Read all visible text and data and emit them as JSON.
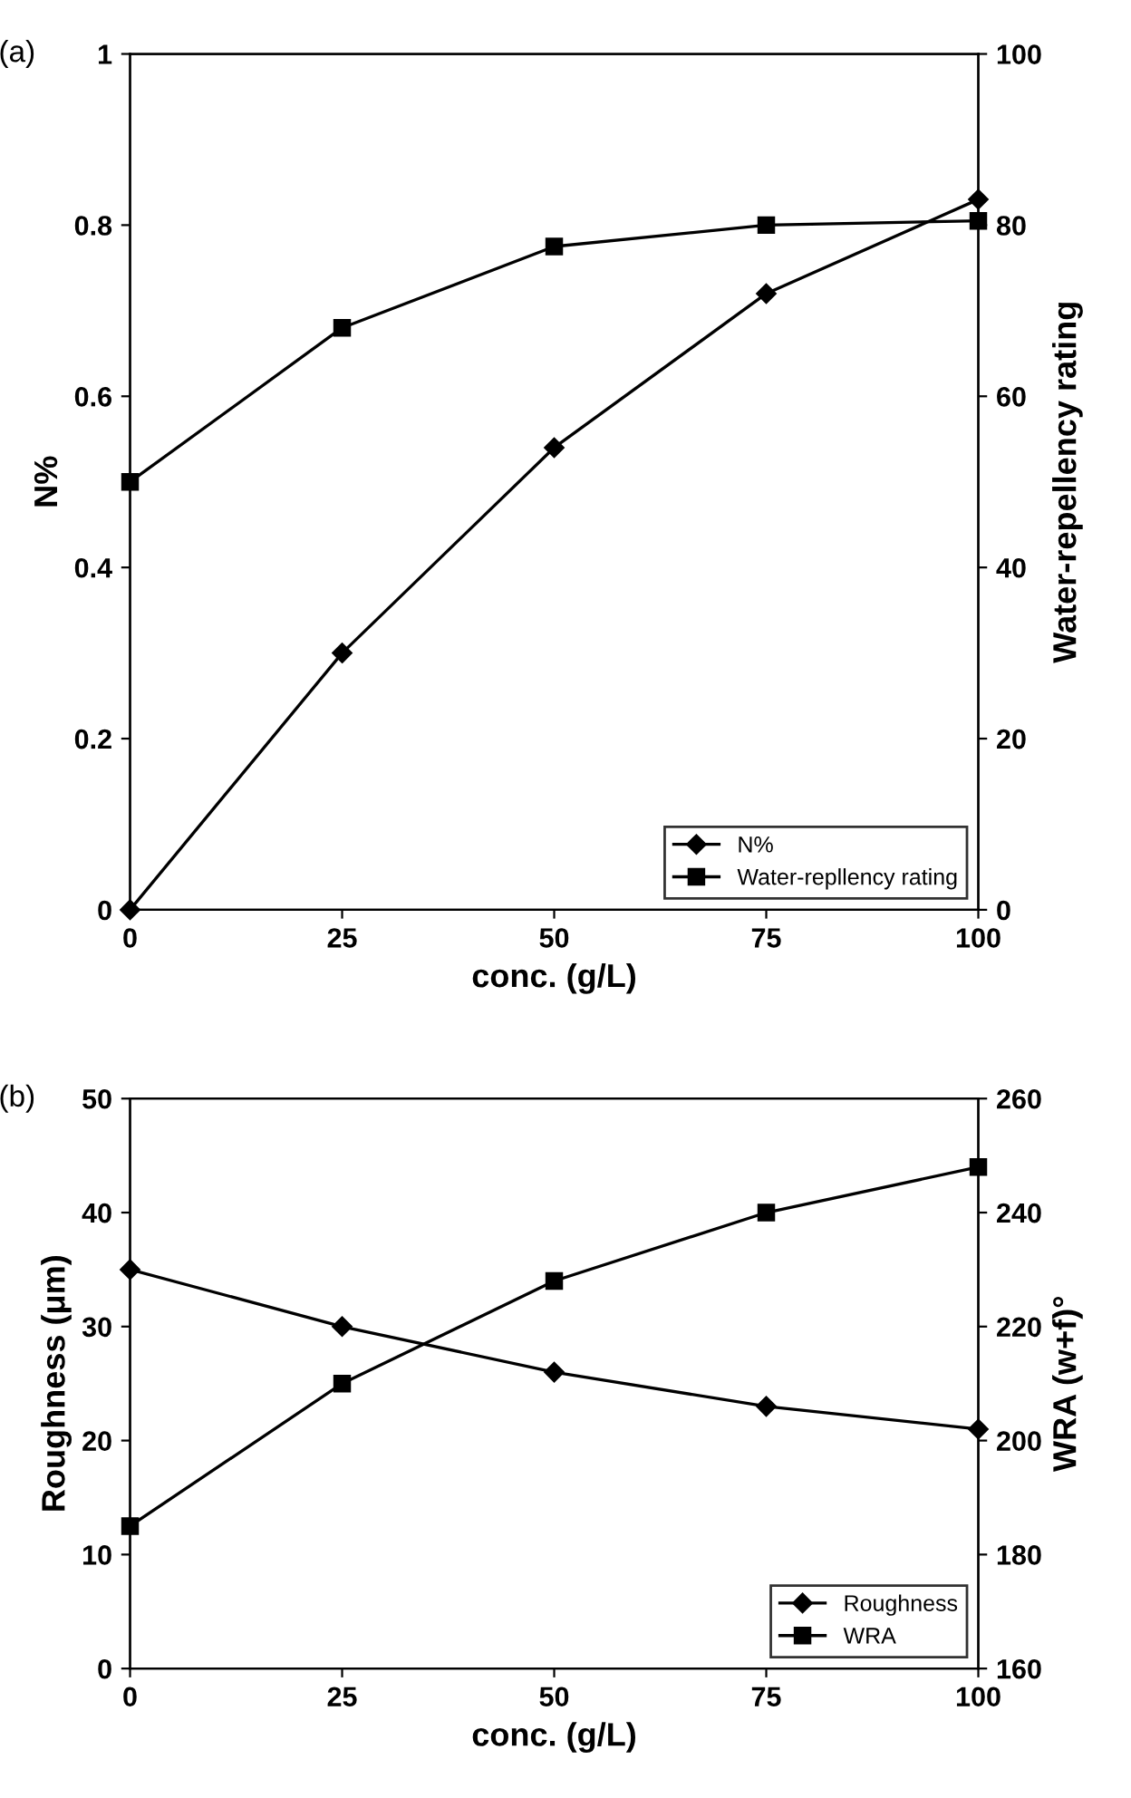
{
  "chart_data": [
    {
      "type": "line",
      "annotations": [
        "(a)"
      ],
      "xlabel": "conc. (g/L)",
      "ylabel": "N%",
      "y2label": "Water-repellency rating",
      "x": [
        0,
        25,
        50,
        75,
        100
      ],
      "xlim": [
        0,
        100
      ],
      "xticks": [
        0,
        25,
        50,
        75,
        100
      ],
      "ylim": [
        0,
        1
      ],
      "yticks": [
        0,
        0.2,
        0.4,
        0.6,
        0.8,
        1
      ],
      "y2lim": [
        0,
        100
      ],
      "y2ticks": [
        0,
        20,
        40,
        60,
        80,
        100
      ],
      "legend": "bottom right",
      "grid": false,
      "line_style": "solid",
      "series": [
        {
          "name": "N%",
          "color": "#000000",
          "marker": "diamond",
          "values": [
            0,
            0.3,
            0.54,
            0.72,
            0.83
          ]
        },
        {
          "name": "Water-repllency rating",
          "color": "#000000",
          "marker": "square",
          "axis": "y2",
          "values": [
            50,
            68,
            77.5,
            80,
            80.5
          ]
        }
      ]
    },
    {
      "type": "line",
      "annotations": [
        "(b)"
      ],
      "xlabel": "conc. (g/L)",
      "ylabel": "Roughness (μm)",
      "y2label": "WRA (w+f)°",
      "x": [
        0,
        25,
        50,
        75,
        100
      ],
      "xlim": [
        0,
        100
      ],
      "xticks": [
        0,
        25,
        50,
        75,
        100
      ],
      "ylim": [
        0,
        50
      ],
      "yticks": [
        0,
        10,
        20,
        30,
        40,
        50
      ],
      "y2lim": [
        160,
        260
      ],
      "y2ticks": [
        160,
        180,
        200,
        220,
        240,
        260
      ],
      "legend": "bottom right",
      "grid": false,
      "line_style": "solid",
      "series": [
        {
          "name": "Roughness",
          "color": "#000000",
          "marker": "diamond",
          "values": [
            35,
            30,
            26,
            23,
            21
          ]
        },
        {
          "name": "WRA",
          "color": "#000000",
          "marker": "square",
          "axis": "y2",
          "values": [
            185,
            210,
            228,
            240,
            248
          ]
        }
      ]
    }
  ]
}
